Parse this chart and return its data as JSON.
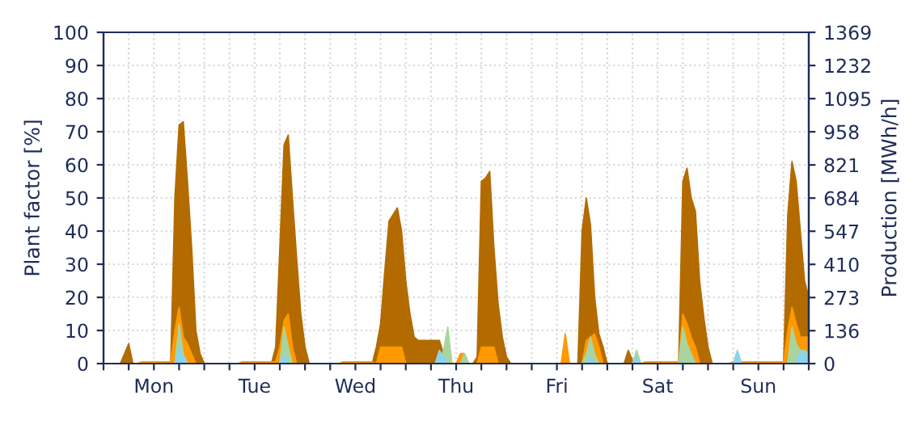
{
  "chart_data": {
    "type": "area",
    "ylabel": "Plant factor [%]",
    "y2label": "Production [MWh/h]",
    "categories": [
      null,
      null,
      null,
      null,
      null,
      null,
      null,
      null,
      null,
      null,
      null,
      null,
      "Mon",
      null,
      null,
      null,
      null,
      null,
      null,
      null,
      null,
      null,
      null,
      null,
      null,
      null,
      null,
      null,
      null,
      null,
      null,
      null,
      null,
      null,
      null,
      null,
      "Tue",
      null,
      null,
      null,
      null,
      null,
      null,
      null,
      null,
      null,
      null,
      null,
      null,
      null,
      null,
      null,
      null,
      null,
      null,
      null,
      null,
      null,
      null,
      null,
      "Wed",
      null,
      null,
      null,
      null,
      null,
      null,
      null,
      null,
      null,
      null,
      null,
      null,
      null,
      null,
      null,
      null,
      null,
      null,
      null,
      null,
      null,
      null,
      null,
      "Thu",
      null,
      null,
      null,
      null,
      null,
      null,
      null,
      null,
      null,
      null,
      null,
      null,
      null,
      null,
      null,
      null,
      null,
      null,
      null,
      null,
      null,
      null,
      null,
      "Fri",
      null,
      null,
      null,
      null,
      null,
      null,
      null,
      null,
      null,
      null,
      null,
      null,
      null,
      null,
      null,
      null,
      null,
      null,
      null,
      null,
      null,
      null,
      null,
      "Sat",
      null,
      null,
      null,
      null,
      null,
      null,
      null,
      null,
      null,
      null,
      null,
      null,
      null,
      null,
      null,
      null,
      null,
      null,
      null,
      null,
      null,
      null,
      null,
      "Sun",
      null,
      null,
      null,
      null,
      null,
      null,
      null,
      null,
      null,
      null,
      null,
      null
    ],
    "ylim": [
      0,
      100
    ],
    "yticks": [
      0,
      10,
      20,
      30,
      40,
      50,
      60,
      70,
      80,
      90,
      100
    ],
    "y2lim": [
      0,
      1369
    ],
    "y2ticks": [
      0,
      136,
      273,
      410,
      547,
      684,
      821,
      958,
      1095,
      1232,
      1369
    ],
    "grid": true,
    "series": [
      {
        "color": "#b36b00",
        "values": [
          0,
          0,
          0,
          0,
          0,
          3,
          6,
          0,
          0,
          0,
          0,
          0,
          0,
          0,
          0,
          0,
          0,
          50,
          72,
          73,
          55,
          35,
          10,
          3,
          0,
          0,
          0,
          0,
          0,
          0,
          0,
          0,
          0,
          0,
          0,
          0,
          0,
          0,
          0,
          0,
          0,
          5,
          35,
          66,
          69,
          50,
          32,
          15,
          5,
          0,
          0,
          0,
          0,
          0,
          0,
          0,
          0,
          0,
          0,
          0,
          0,
          0,
          0,
          0,
          0,
          5,
          12,
          28,
          43,
          45,
          47,
          40,
          25,
          15,
          8,
          7,
          7,
          7,
          7,
          7,
          7,
          3,
          0,
          0,
          0,
          0,
          0,
          0,
          0,
          2,
          55,
          56,
          58,
          35,
          18,
          8,
          2,
          0,
          0,
          0,
          0,
          0,
          0,
          0,
          0,
          0,
          0,
          0,
          0,
          0,
          0,
          0,
          0,
          0,
          40,
          50,
          42,
          20,
          9,
          5,
          0,
          0,
          0,
          0,
          0,
          4,
          1,
          0,
          0,
          0,
          0,
          0,
          0,
          0,
          0,
          0,
          0,
          0,
          55,
          59,
          50,
          46,
          25,
          14,
          5,
          0,
          0,
          0,
          0,
          0,
          0,
          0,
          0,
          0,
          0,
          0,
          0,
          0,
          0,
          0,
          0,
          0,
          0,
          45,
          61,
          55,
          40,
          25,
          20
        ]
      },
      {
        "color": "#ff9900",
        "values": [
          0,
          0,
          0,
          0,
          0,
          0,
          0,
          0,
          0,
          0.5,
          0.5,
          0.5,
          0.5,
          0.5,
          0.5,
          0.5,
          0.5,
          10,
          17,
          8,
          6,
          3,
          0,
          0,
          0,
          0,
          0,
          0,
          0,
          0,
          0,
          0,
          0,
          0.5,
          0.5,
          0.5,
          0.5,
          0.5,
          0.5,
          0.5,
          0.5,
          0.5,
          5,
          13,
          15,
          5,
          0,
          0,
          0,
          0,
          0,
          0,
          0,
          0,
          0,
          0,
          0,
          0.5,
          0.5,
          0.5,
          0.5,
          0.5,
          0.5,
          0.5,
          0.5,
          0,
          5,
          5,
          5,
          5,
          5,
          5,
          0,
          0,
          0,
          0,
          0,
          0,
          0,
          0,
          0,
          0,
          0,
          0,
          0,
          3,
          3,
          0,
          0,
          0,
          5,
          5,
          5,
          5,
          0,
          0,
          0,
          0,
          0,
          0,
          0,
          0,
          0,
          0,
          0,
          0,
          0,
          0,
          0,
          0,
          9,
          0,
          0,
          0,
          0,
          7,
          8,
          9,
          5,
          0,
          0,
          0,
          0,
          0,
          0,
          0,
          0,
          0,
          0,
          0.5,
          0.5,
          0.5,
          0.5,
          0.5,
          0.5,
          0.5,
          0.5,
          0.5,
          15,
          12,
          8,
          5,
          0,
          0,
          0,
          0,
          0,
          0,
          0,
          0,
          0.5,
          0.5,
          0.5,
          0.5,
          0.5,
          0.5,
          0.5,
          0.5,
          0.5,
          0.5,
          0.5,
          0.5,
          0.5,
          10,
          17,
          12,
          8,
          8,
          8
        ]
      },
      {
        "color": "#a8d4a0",
        "values": [
          0,
          0,
          0,
          0,
          0,
          0,
          0,
          0,
          0,
          0,
          0,
          0,
          0,
          0,
          0,
          0,
          0,
          0,
          12,
          3,
          0,
          0,
          0,
          0,
          0,
          0,
          0,
          0,
          0,
          0,
          0,
          0,
          0,
          0,
          0,
          0,
          0,
          0,
          0,
          0,
          0,
          0,
          0,
          11,
          5,
          0,
          0,
          0,
          0,
          0,
          0,
          0,
          0,
          0,
          0,
          0,
          0,
          0,
          0,
          0,
          0,
          0,
          0,
          0,
          0,
          0,
          0,
          0,
          0,
          0,
          0,
          0,
          0,
          0,
          0,
          0,
          0,
          0,
          0,
          0,
          0,
          4,
          11,
          0,
          0,
          0,
          3,
          0,
          0,
          0,
          0,
          0,
          0,
          0,
          0,
          0,
          0,
          0,
          0,
          0,
          0,
          0,
          0,
          0,
          0,
          0,
          0,
          0,
          0,
          0,
          0,
          0,
          0,
          0,
          0,
          3,
          8,
          3,
          0,
          0,
          0,
          0,
          0,
          0,
          0,
          0,
          0,
          4,
          0,
          0,
          0,
          0,
          0,
          0,
          0,
          0,
          0,
          0,
          11,
          6,
          3,
          0,
          0,
          0,
          0,
          0,
          0,
          0,
          0,
          0,
          0,
          0,
          0,
          0,
          0,
          0,
          0,
          0,
          0,
          0,
          0,
          0,
          0,
          0,
          11,
          6,
          4,
          4,
          3
        ]
      },
      {
        "color": "#8fd3ea",
        "values": [
          0,
          0,
          0,
          0,
          0,
          0,
          0,
          0,
          0,
          0,
          0,
          0,
          0,
          0,
          0,
          0,
          0,
          0,
          5,
          2,
          0,
          0,
          0,
          0,
          0,
          0,
          0,
          0,
          0,
          0,
          0,
          0,
          0,
          0,
          0,
          0,
          0,
          0,
          0,
          0,
          0,
          0,
          0,
          3,
          0,
          0,
          0,
          0,
          0,
          0,
          0,
          0,
          0,
          0,
          0,
          0,
          0,
          0,
          0,
          0,
          0,
          0,
          0,
          0,
          0,
          0,
          0,
          0,
          0,
          0,
          0,
          0,
          0,
          0,
          0,
          0,
          0,
          0,
          0,
          0,
          4,
          2,
          0,
          0,
          0,
          0,
          0,
          0,
          0,
          0,
          0,
          0,
          0,
          0,
          0,
          0,
          0,
          0,
          0,
          0,
          0,
          0,
          0,
          0,
          0,
          0,
          0,
          0,
          0,
          0,
          0,
          0,
          0,
          0,
          0,
          0,
          2,
          0,
          0,
          0,
          0,
          0,
          0,
          0,
          0,
          0,
          0,
          2,
          0,
          0,
          0,
          0,
          0,
          0,
          0,
          0,
          0,
          0,
          0,
          0,
          0,
          0,
          0,
          0,
          0,
          0,
          0,
          0,
          0,
          0,
          0,
          4,
          0,
          0,
          0,
          0,
          0,
          0,
          0,
          0,
          0,
          0,
          0,
          0,
          0,
          0,
          4,
          3,
          0
        ]
      }
    ]
  }
}
